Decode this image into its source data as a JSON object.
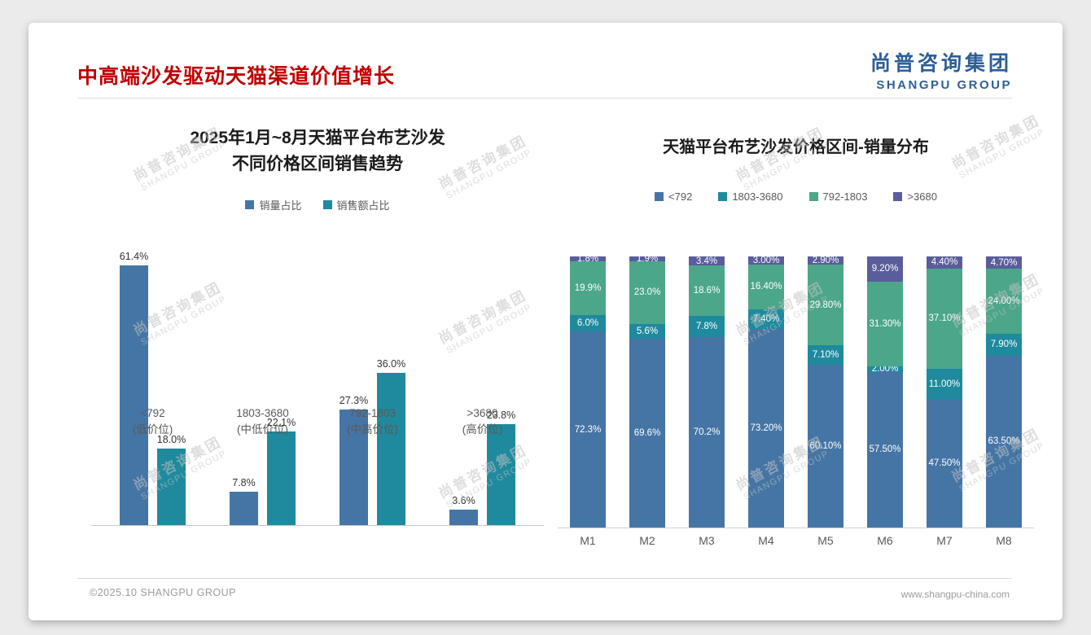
{
  "slide": {
    "title": "中高端沙发驱动天猫渠道价值增长",
    "logo": {
      "cn": "尚普咨询集团",
      "en": "SHANGPU GROUP"
    },
    "footer": {
      "left": "©2025.10 SHANGPU GROUP",
      "right": "www.shangpu-china.com"
    },
    "watermark": {
      "cn": "尚普咨询集团",
      "en": "SHANGPU GROUP"
    }
  },
  "colors": {
    "title_red": "#c00000",
    "logo_blue": "#2d5f96",
    "series_blue": "#4575a5",
    "series_teal": "#1f8a9d",
    "series_green": "#4ca68a",
    "series_purple": "#595d9b"
  },
  "chart_data": [
    {
      "type": "bar",
      "stacked": false,
      "title_lines": [
        "2025年1月~8月天猫平台布艺沙发",
        "不同价格区间销售趋势"
      ],
      "categories": [
        "<792",
        "1803-3680",
        "792-1803",
        ">3680"
      ],
      "category_sublabels": [
        "(低价位)",
        "(中低价位)",
        "(中高价位)",
        "(高价位)"
      ],
      "series": [
        {
          "name": "销量占比",
          "color_key": "series_blue",
          "values": [
            61.4,
            7.8,
            27.3,
            3.6
          ],
          "labels": [
            "61.4%",
            "7.8%",
            "27.3%",
            "3.6%"
          ]
        },
        {
          "name": "销售额占比",
          "color_key": "series_teal",
          "values": [
            18.0,
            22.1,
            36.0,
            23.8
          ],
          "labels": [
            "18.0%",
            "22.1%",
            "36.0%",
            "23.8%"
          ]
        }
      ],
      "ylabel": "",
      "xlabel": "",
      "ylim": [
        0,
        65
      ],
      "grid": false,
      "legend_position": "top"
    },
    {
      "type": "bar",
      "stacked": true,
      "title": "天猫平台布艺沙发价格区间-销量分布",
      "categories": [
        "M1",
        "M2",
        "M3",
        "M4",
        "M5",
        "M6",
        "M7",
        "M8"
      ],
      "series": [
        {
          "name": "<792",
          "color_key": "series_blue",
          "values": [
            72.3,
            69.6,
            70.2,
            73.2,
            60.1,
            57.5,
            47.5,
            63.5
          ],
          "labels": [
            "72.3%",
            "69.6%",
            "70.2%",
            "73.20%",
            "60.10%",
            "57.50%",
            "47.50%",
            "63.50%"
          ]
        },
        {
          "name": "1803-3680",
          "color_key": "series_teal",
          "values": [
            6.0,
            5.6,
            7.8,
            7.4,
            7.1,
            2.0,
            11.0,
            7.9
          ],
          "labels": [
            "6.0%",
            "5.6%",
            "7.8%",
            "7.40%",
            "7.10%",
            "2.00%",
            "11.00%",
            "7.90%"
          ]
        },
        {
          "name": "792-1803",
          "color_key": "series_green",
          "values": [
            19.9,
            23.0,
            18.6,
            16.4,
            29.8,
            31.3,
            37.1,
            24.0
          ],
          "labels": [
            "19.9%",
            "23.0%",
            "18.6%",
            "16.40%",
            "29.80%",
            "31.30%",
            "37.10%",
            "24.00%"
          ]
        },
        {
          "name": ">3680",
          "color_key": "series_purple",
          "values": [
            1.8,
            1.9,
            3.4,
            3.0,
            2.9,
            9.2,
            4.4,
            4.7
          ],
          "labels": [
            "1.8%",
            "1.9%",
            "3.4%",
            "3.00%",
            "2.90%",
            "9.20%",
            "4.40%",
            "4.70%"
          ]
        }
      ],
      "ylabel": "",
      "xlabel": "",
      "ylim": [
        0,
        100
      ],
      "grid": false,
      "legend_position": "top"
    }
  ]
}
